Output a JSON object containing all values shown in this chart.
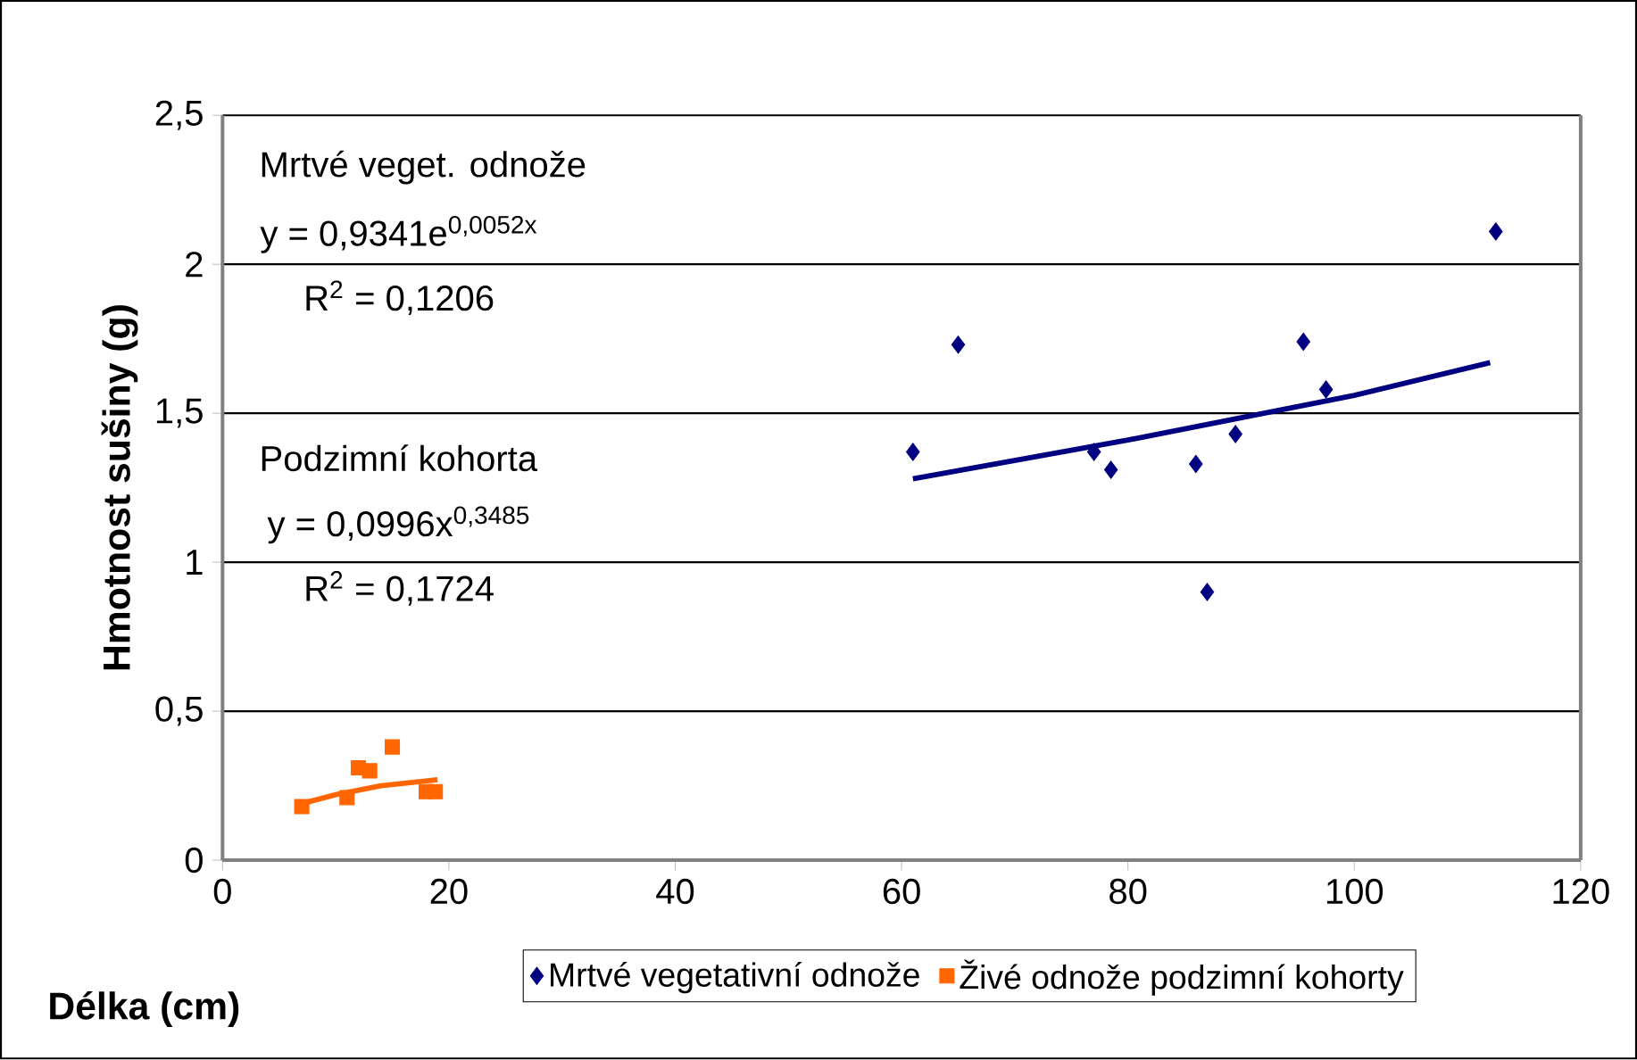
{
  "chart_data": {
    "type": "scatter",
    "xlabel": "Délka (cm)",
    "ylabel": "Hmotnost sušiny (g)",
    "xlim": [
      0,
      120
    ],
    "xticks": [
      0,
      20,
      40,
      60,
      80,
      100,
      120
    ],
    "ylim": [
      0,
      2.5
    ],
    "yticks": [
      0,
      {
        "value": 0.5,
        "label": "0,5"
      },
      1,
      {
        "value": 1.5,
        "label": "1,5"
      },
      2,
      {
        "value": 2.5,
        "label": "2,5"
      }
    ],
    "grid": "y",
    "legend": "bottom",
    "series": [
      {
        "name": "Mrtvé vegetativní odnože",
        "color": "#000080",
        "marker": "diamond",
        "x": [
          61,
          65,
          77,
          78.5,
          86,
          87,
          89.5,
          95.5,
          97.5,
          112.5
        ],
        "values": [
          1.37,
          1.73,
          1.37,
          1.31,
          1.33,
          0.9,
          1.43,
          1.74,
          1.58,
          2.11
        ]
      },
      {
        "name": "Živé odnože podzimní kohorty",
        "color": "#ff6600",
        "marker": "square",
        "x": [
          7,
          11,
          12,
          13,
          15,
          18,
          18.8
        ],
        "values": [
          0.18,
          0.21,
          0.31,
          0.3,
          0.38,
          0.23,
          0.23
        ]
      },
      {
        "type": "line",
        "color": "#000080",
        "marker": "none",
        "x": [
          61,
          80,
          100,
          112
        ],
        "values": [
          1.28,
          1.41,
          1.56,
          1.67
        ]
      },
      {
        "type": "line",
        "color": "#ff6600",
        "marker": "none",
        "x": [
          7,
          10,
          14,
          19
        ],
        "values": [
          0.19,
          0.22,
          0.25,
          0.27
        ]
      }
    ],
    "annotations": [
      "Mrtvé veget. odnože",
      "y = 0,9341e$^{0,0052x}$",
      "R$^{2}$ = 0,1206",
      "Podzimní kohorta",
      "y = 0,0996x$^{0,3485}$",
      "R$^{2}$ = 0,1724"
    ]
  }
}
